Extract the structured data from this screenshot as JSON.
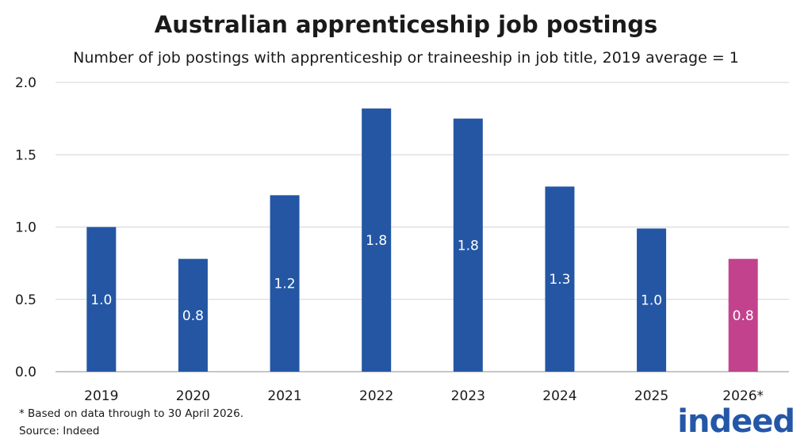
{
  "title": "Australian apprenticeship job postings",
  "subtitle": "Number of job postings with apprenticeship or traineeship in job title, 2019 average = 1",
  "footnote": "* Based on data through to 30 April 2026.",
  "source": "Source: Indeed",
  "logo_text": "indeed",
  "colors": {
    "bar": "#2456a4",
    "highlight": "#c3428d",
    "grid": "#d4d4d4",
    "logo": "#2557a7"
  },
  "chart_data": {
    "type": "bar",
    "categories": [
      "2019",
      "2020",
      "2021",
      "2022",
      "2023",
      "2024",
      "2025",
      "2026*"
    ],
    "values": [
      1.0,
      0.78,
      1.22,
      1.82,
      1.75,
      1.28,
      0.99,
      0.78
    ],
    "data_labels": [
      "1.0",
      "0.8",
      "1.2",
      "1.8",
      "1.8",
      "1.3",
      "1.0",
      "0.8"
    ],
    "highlight_index": 7,
    "ylim": [
      0,
      2.0
    ],
    "yticks": [
      0.0,
      0.5,
      1.0,
      1.5,
      2.0
    ],
    "ytick_labels": [
      "0.0",
      "0.5",
      "1.0",
      "1.5",
      "2.0"
    ],
    "grid": true
  }
}
